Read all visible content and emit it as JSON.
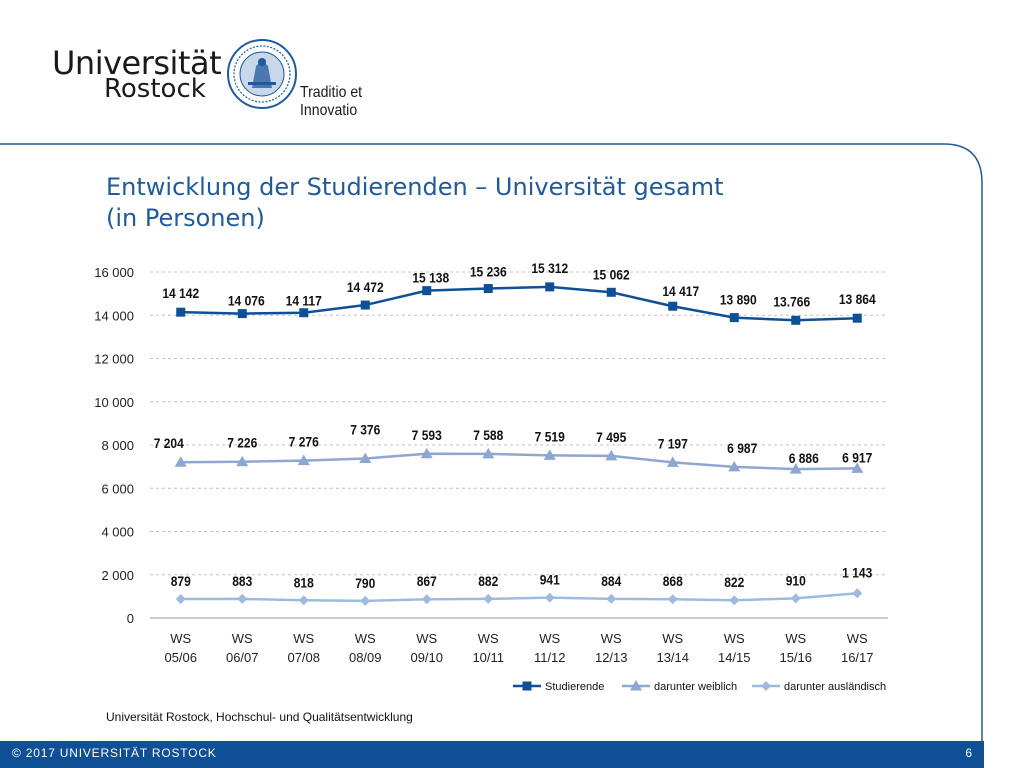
{
  "header": {
    "logo_line1": "Universität",
    "logo_line2": "Rostock",
    "motto": "Traditio et Innovatio"
  },
  "slide": {
    "title_line1": "Entwicklung der Studierenden – Universität gesamt",
    "title_line2": "(in Personen)",
    "source": "Universität Rostock, Hochschul- und Qualitätsentwicklung"
  },
  "footer": {
    "copyright": "© 2017 UNIVERSITÄT ROSTOCK",
    "page_number": "6"
  },
  "colors": {
    "brand_blue": "#0e4f96",
    "title_blue": "#1f5a9c",
    "series_studierende": "#0e4f96",
    "series_weiblich": "#8fa6d1",
    "series_auslaendisch": "#9dbbdf"
  },
  "chart_data": {
    "type": "line",
    "title": "",
    "xlabel": "",
    "ylabel": "",
    "ylim": [
      0,
      16000
    ],
    "yticks": [
      0,
      2000,
      4000,
      6000,
      8000,
      10000,
      12000,
      14000,
      16000
    ],
    "ytick_labels": [
      "0",
      "2 000",
      "4 000",
      "6 000",
      "8 000",
      "10 000",
      "12 000",
      "14 000",
      "16 000"
    ],
    "grid": true,
    "legend_position": "bottom-right",
    "categories": [
      [
        "WS",
        "05/06"
      ],
      [
        "WS",
        "06/07"
      ],
      [
        "WS",
        "07/08"
      ],
      [
        "WS",
        "08/09"
      ],
      [
        "WS",
        "09/10"
      ],
      [
        "WS",
        "10/11"
      ],
      [
        "WS",
        "11/12"
      ],
      [
        "WS",
        "12/13"
      ],
      [
        "WS",
        "13/14"
      ],
      [
        "WS",
        "14/15"
      ],
      [
        "WS",
        "15/16"
      ],
      [
        "WS",
        "16/17"
      ]
    ],
    "series": [
      {
        "name": "Studierende",
        "marker": "square",
        "color": "#0e4f96",
        "values": [
          14142,
          14076,
          14117,
          14472,
          15138,
          15236,
          15312,
          15062,
          14417,
          13890,
          13766,
          13864
        ],
        "labels": [
          "14 142",
          "14 076",
          "14 117",
          "14 472",
          "15 138",
          "15 236",
          "15 312",
          "15 062",
          "14 417",
          "13 890",
          "13.766",
          "13 864"
        ]
      },
      {
        "name": "darunter weiblich",
        "marker": "triangle",
        "color": "#8fa6d1",
        "values": [
          7204,
          7226,
          7276,
          7376,
          7593,
          7588,
          7519,
          7495,
          7197,
          6987,
          6886,
          6917
        ],
        "labels": [
          "7 204",
          "7 226",
          "7 276",
          "7 376",
          "7 593",
          "7 588",
          "7 519",
          "7 495",
          "7 197",
          "6 987",
          "6 886",
          "6 917"
        ]
      },
      {
        "name": "darunter ausländisch",
        "marker": "diamond",
        "color": "#9dbbdf",
        "values": [
          879,
          883,
          818,
          790,
          867,
          882,
          941,
          884,
          868,
          822,
          910,
          1143
        ],
        "labels": [
          "879",
          "883",
          "818",
          "790",
          "867",
          "882",
          "941",
          "884",
          "868",
          "822",
          "910",
          "1 143"
        ]
      }
    ]
  }
}
